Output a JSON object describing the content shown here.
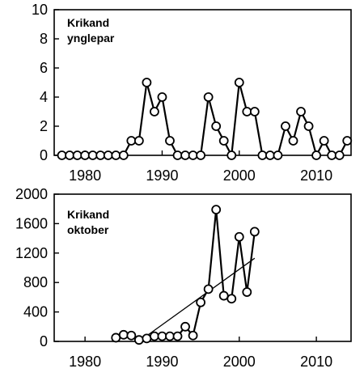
{
  "chart_data": [
    {
      "type": "line",
      "title": "",
      "label_lines": [
        "Krikand",
        "ynglepar"
      ],
      "xlabel": "",
      "ylabel": "",
      "xlim": [
        1976,
        2014.5
      ],
      "ylim": [
        0,
        10
      ],
      "xticks": [
        1980,
        1990,
        2000,
        2010
      ],
      "xtick_labels": [
        "1980",
        "1990",
        "2000",
        "2010"
      ],
      "yticks": [
        0,
        2,
        4,
        6,
        8,
        10
      ],
      "ytick_labels": [
        "0",
        "2",
        "4",
        "6",
        "8",
        "10"
      ],
      "grid": false,
      "series": [
        {
          "x": [
            1977,
            1978,
            1979,
            1980,
            1981,
            1982,
            1983,
            1984,
            1985,
            1986,
            1987,
            1988,
            1989,
            1990,
            1991,
            1992,
            1993,
            1994,
            1995,
            1996,
            1997,
            1998,
            1999,
            2000,
            2001,
            2002,
            2003,
            2004,
            2005,
            2006,
            2007,
            2008,
            2009,
            2010,
            2011,
            2012,
            2013,
            2014
          ],
          "values": [
            0,
            0,
            0,
            0,
            0,
            0,
            0,
            0,
            0,
            1,
            1,
            5,
            3,
            4,
            1,
            0,
            0,
            0,
            0,
            4,
            2,
            1,
            0,
            5,
            3,
            3,
            0,
            0,
            0,
            2,
            1,
            3,
            2,
            0,
            1,
            0,
            0,
            1
          ],
          "marker": "open-circle"
        }
      ]
    },
    {
      "type": "line",
      "title": "",
      "label_lines": [
        "Krikand",
        "oktober"
      ],
      "xlabel": "",
      "ylabel": "",
      "xlim": [
        1976,
        2014.5
      ],
      "ylim": [
        0,
        2000
      ],
      "xticks": [
        1980,
        1990,
        2000,
        2010
      ],
      "xtick_labels": [
        "1980",
        "1990",
        "2000",
        "2010"
      ],
      "yticks": [
        0,
        400,
        800,
        1200,
        1600,
        2000
      ],
      "ytick_labels": [
        "0",
        "400",
        "800",
        "1200",
        "1600",
        "2000"
      ],
      "grid": false,
      "series": [
        {
          "x": [
            1984,
            1985,
            1986,
            1987,
            1988,
            1989,
            1990,
            1991,
            1992,
            1993,
            1994,
            1995,
            1996,
            1997,
            1998,
            1999,
            2000,
            2001,
            2002
          ],
          "values": [
            50,
            90,
            80,
            20,
            40,
            70,
            70,
            70,
            70,
            200,
            80,
            530,
            710,
            1790,
            620,
            580,
            1420,
            670,
            1490
          ],
          "marker": "open-circle"
        }
      ],
      "trend_line": {
        "x": [
          1987,
          2002
        ],
        "values": [
          0,
          1130
        ]
      }
    }
  ]
}
